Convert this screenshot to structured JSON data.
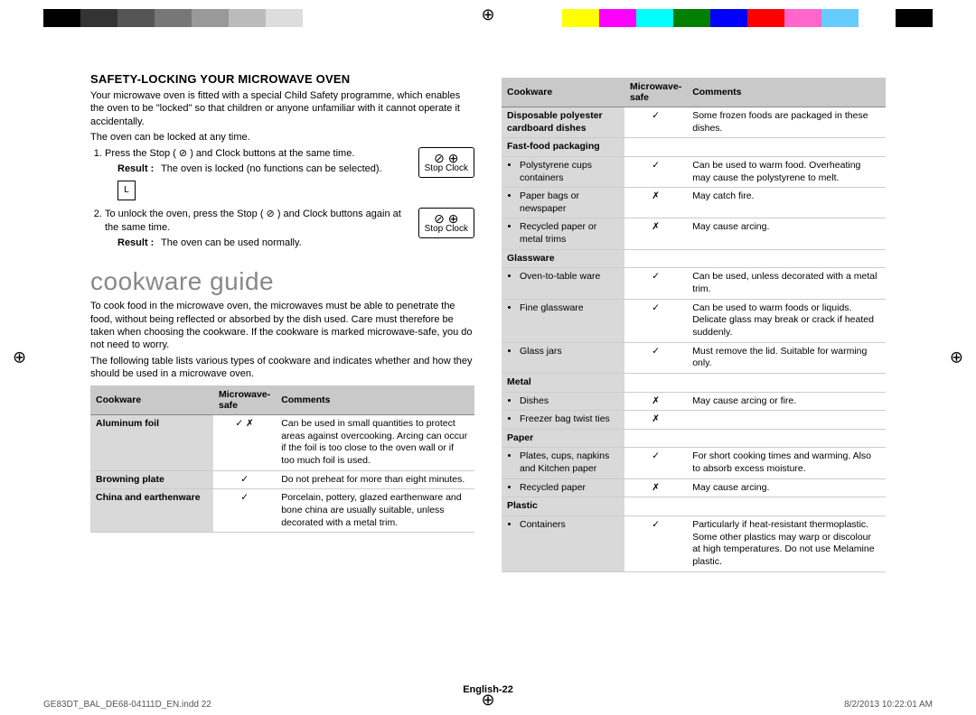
{
  "colorbar": [
    "#000000",
    "#333333",
    "#555555",
    "#777777",
    "#999999",
    "#bbbbbb",
    "#dddddd",
    "#ffffff",
    "#ffffff",
    "#ffffff",
    "#ffffff",
    "#ffffff",
    "#ffffff",
    "#ffffff",
    "#ffff00",
    "#ff00ff",
    "#00ffff",
    "#008000",
    "#0000ff",
    "#ff0000",
    "#ff66cc",
    "#66ccff",
    "#ffffff",
    "#000000"
  ],
  "safety": {
    "heading": "SAFETY-LOCKING YOUR MICROWAVE OVEN",
    "intro1": "Your microwave oven is fitted with a special Child Safety programme, which enables the oven to be \"locked\" so that children or anyone unfamiliar with it cannot operate it accidentally.",
    "intro2": "The oven can be locked at any time.",
    "step1": "Press the Stop ( ⊘ ) and Clock buttons at the same time.",
    "result_label": "Result :",
    "result1": "The oven is locked (no functions can be selected).",
    "lock_display": "L",
    "step2": "To unlock the oven, press the Stop ( ⊘ ) and Clock buttons again at the same time.",
    "result2": "The oven can be used normally.",
    "button_icons": "⊘  ⊕",
    "button_labels": "Stop  Clock"
  },
  "guide": {
    "title": "cookware guide",
    "intro": "To cook food in the microwave oven, the microwaves must be able to penetrate the food, without being reflected or absorbed by the dish used. Care must therefore be taken when choosing the cookware. If the cookware is marked microwave-safe, you do not need to worry.",
    "intro2": "The following table lists various types of cookware and indicates whether and how they should be used in a microwave oven."
  },
  "headers": {
    "c1": "Cookware",
    "c2": "Microwave-safe",
    "c3": "Comments"
  },
  "left_rows": [
    {
      "name": "Aluminum foil",
      "safe": "✓ ✗",
      "comment": "Can be used in small quantities to protect areas against overcooking. Arcing can occur if the foil is too close to the oven wall or if too much foil is used."
    },
    {
      "name": "Browning plate",
      "safe": "✓",
      "comment": "Do not preheat for more than eight minutes."
    },
    {
      "name": "China and earthenware",
      "safe": "✓",
      "comment": "Porcelain, pottery, glazed earthenware and bone china are usually suitable, unless decorated with a metal trim."
    }
  ],
  "right_rows": [
    {
      "name": "Disposable polyester cardboard dishes",
      "safe": "✓",
      "comment": "Some frozen foods are packaged in these dishes."
    },
    {
      "group": "Fast-food packaging"
    },
    {
      "sub": "Polystyrene cups containers",
      "safe": "✓",
      "comment": "Can be used to warm food. Overheating may cause the polystyrene to melt."
    },
    {
      "sub": "Paper bags or newspaper",
      "safe": "✗",
      "comment": "May catch fire."
    },
    {
      "sub": "Recycled paper or metal trims",
      "safe": "✗",
      "comment": "May cause arcing."
    },
    {
      "group": "Glassware"
    },
    {
      "sub": "Oven-to-table ware",
      "safe": "✓",
      "comment": "Can be used, unless decorated with a metal trim."
    },
    {
      "sub": "Fine glassware",
      "safe": "✓",
      "comment": "Can be used to warm foods or liquids. Delicate glass may break or crack if heated suddenly."
    },
    {
      "sub": "Glass jars",
      "safe": "✓",
      "comment": "Must remove the lid. Suitable for warming only."
    },
    {
      "group": "Metal"
    },
    {
      "sub": "Dishes",
      "safe": "✗",
      "comment": "May cause arcing or fire."
    },
    {
      "sub": "Freezer bag twist ties",
      "safe": "✗",
      "comment": ""
    },
    {
      "group": "Paper"
    },
    {
      "sub": "Plates, cups, napkins and Kitchen paper",
      "safe": "✓",
      "comment": "For short cooking times and warming. Also to absorb excess moisture."
    },
    {
      "sub": "Recycled paper",
      "safe": "✗",
      "comment": "May cause arcing."
    },
    {
      "group": "Plastic"
    },
    {
      "sub": "Containers",
      "safe": "✓",
      "comment": "Particularly if heat-resistant thermoplastic. Some other plastics may warp or discolour at high temperatures. Do not use Melamine plastic."
    }
  ],
  "footer": {
    "center": "English-22",
    "left": "GE83DT_BAL_DE68-04111D_EN.indd   22",
    "right": "8/2/2013   10:22:01 AM"
  }
}
